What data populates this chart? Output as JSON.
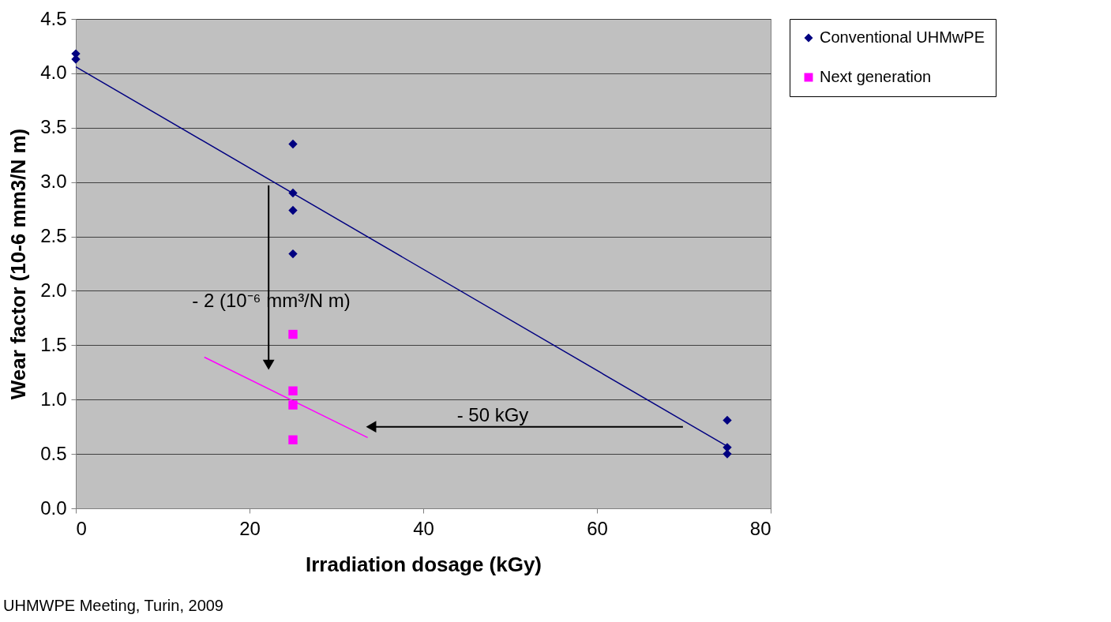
{
  "chart_data": {
    "type": "scatter",
    "xlabel": "Irradiation dosage (kGy)",
    "ylabel": "Wear factor (10-6 mm3/N m)",
    "xlim": [
      0,
      80
    ],
    "xticks": [
      0,
      20,
      40,
      60,
      80
    ],
    "ylim": [
      0,
      4.5
    ],
    "yticks": [
      {
        "value": 0,
        "label": "0.0"
      },
      0.5,
      {
        "value": 1,
        "label": "1.0"
      },
      1.5,
      {
        "value": 2,
        "label": "2.0"
      },
      2.5,
      {
        "value": 3,
        "label": "3.0"
      },
      3.5,
      {
        "value": 4,
        "label": "4.0"
      },
      4.5
    ],
    "grid": "y",
    "legend": "right",
    "series": [
      {
        "name": "Conventional UHMwPE",
        "color": "#000080",
        "marker": "diamond",
        "x": [
          0,
          0,
          25,
          25,
          25,
          25,
          75,
          75,
          75
        ],
        "values": [
          4.18,
          4.13,
          3.35,
          2.9,
          2.74,
          2.34,
          0.81,
          0.56,
          0.5
        ]
      },
      {
        "name": "Next generation",
        "color": "#ff00ff",
        "marker": "square",
        "x": [
          25,
          25,
          25,
          25
        ],
        "values": [
          1.6,
          1.08,
          0.95,
          0.63
        ]
      },
      {
        "type": "line",
        "color": "#000080",
        "x": [
          0,
          75
        ],
        "values": [
          4.06,
          0.57
        ]
      },
      {
        "type": "line",
        "color": "#ff00ff",
        "x": [
          14.8,
          33.6
        ],
        "values": [
          1.39,
          0.65
        ]
      }
    ],
    "annotations": [
      "- 2 (10⁻⁶ mm³/N m)",
      "- 50 kGy",
      "UHMWPE Meeting, Turin, 2009"
    ]
  }
}
